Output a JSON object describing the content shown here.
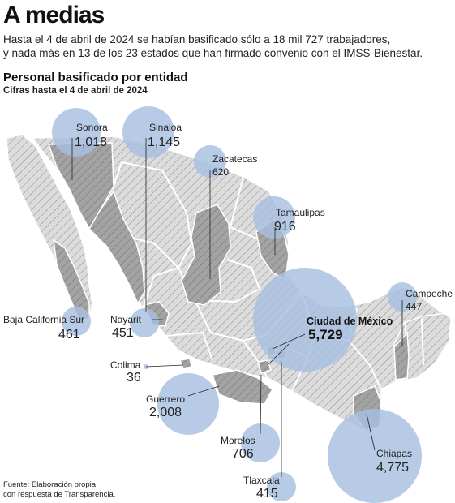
{
  "header": {
    "title": "A medias",
    "lede_line1": "Hasta el 4 de abril de 2024 se habían basificado sólo a 18 mil 727 trabajadores,",
    "lede_line2": "y nada más en 13 de los 23 estados que han firmado convenio con el IMSS-Bienestar.",
    "subtitle": "Personal basificado por entidad",
    "note": "Cifras hasta el 4 de abril de 2024"
  },
  "map": {
    "region": "México",
    "colors": {
      "bubble": "#a8bfe0",
      "state_highlight": "#9e9e9e",
      "state_default": "#dcdcdc",
      "hatch": "#8a8a8a",
      "border": "#ffffff"
    },
    "states": [
      {
        "name": "Sonora",
        "value": "1,018",
        "count": 1018
      },
      {
        "name": "Sinaloa",
        "value": "1,145",
        "count": 1145
      },
      {
        "name": "Zacatecas",
        "value": "620",
        "count": 620
      },
      {
        "name": "Tamaulipas",
        "value": "916",
        "count": 916
      },
      {
        "name": "Campeche",
        "value": "447",
        "count": 447
      },
      {
        "name": "Baja California Sur",
        "value": "461",
        "count": 461
      },
      {
        "name": "Nayarit",
        "value": "451",
        "count": 451
      },
      {
        "name": "Ciudad de México",
        "value": "5,729",
        "count": 5729
      },
      {
        "name": "Colima",
        "value": "36",
        "count": 36
      },
      {
        "name": "Guerrero",
        "value": "2,008",
        "count": 2008
      },
      {
        "name": "Morelos",
        "value": "706",
        "count": 706
      },
      {
        "name": "Chiapas",
        "value": "4,775",
        "count": 4775
      },
      {
        "name": "Tlaxcala",
        "value": "415",
        "count": 415
      }
    ]
  },
  "footer": {
    "source_line1": "Fuente: Elaboración propia",
    "source_line2": "con respuesta de Transparencia."
  }
}
